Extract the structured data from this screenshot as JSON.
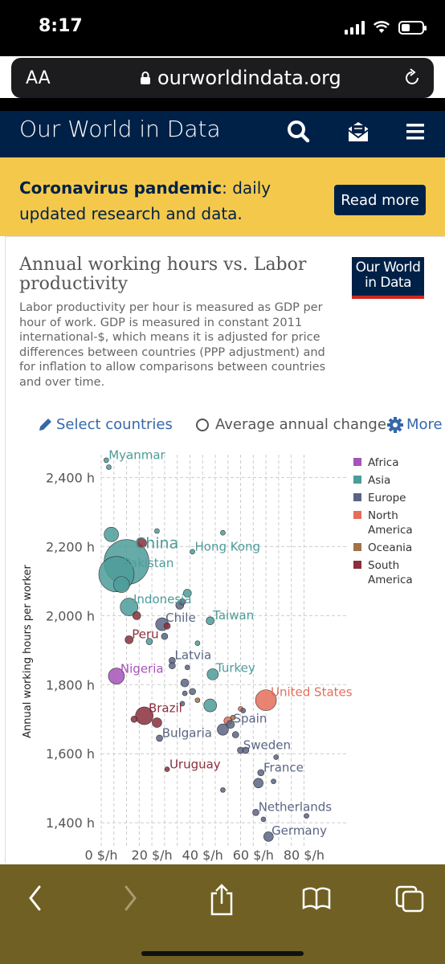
{
  "status_bar": {
    "time": "8:17"
  },
  "browser": {
    "text_size": "AA",
    "url": "ourworldindata.org"
  },
  "site": {
    "name": "Our World in Data"
  },
  "banner": {
    "bold": "Coronavirus pandemic",
    "text": ": daily updated research and data.",
    "button": "Read more"
  },
  "chart_header": {
    "title": "Annual working hours vs. Labor productivity",
    "subtitle": "Labor productivity per hour is measured as GDP per hour of work. GDP is measured in constant 2011 international-$, which means it is adjusted for price differences between countries (PPP adjustment) and for inflation to allow comparisons between countries and over time.",
    "badge_line1": "Our World",
    "badge_line2": "in Data"
  },
  "controls": {
    "select": "Select countries",
    "average": "Average annual change",
    "more": "More"
  },
  "colors": {
    "Africa": "#a652ba",
    "Asia": "#4c9c9a",
    "Europe": "#5a6584",
    "North America": "#e56e5a",
    "Oceania": "#a2724a",
    "South America": "#8a2f3c",
    "navy": "#002147",
    "banner": "#f4c94b"
  },
  "chart_data": {
    "type": "scatter",
    "xlabel": "",
    "ylabel": "Annual working hours per worker",
    "xlim": [
      0,
      90
    ],
    "ylim": [
      1340,
      2480
    ],
    "x_ticks": [
      0,
      20,
      40,
      60,
      80
    ],
    "x_tick_labels": [
      "0 $/h",
      "20 $/h",
      "40 $/h",
      "60 $/h",
      "80 $/h"
    ],
    "y_ticks": [
      1400,
      1600,
      1800,
      2000,
      2200,
      2400
    ],
    "y_tick_labels": [
      "1,400 h",
      "1,600 h",
      "1,800 h",
      "2,000 h",
      "2,200 h",
      "2,400 h"
    ],
    "grid": true,
    "legend": [
      "Africa",
      "Asia",
      "Europe",
      "North America",
      "Oceania",
      "South America"
    ],
    "legend_placement": "right",
    "points": [
      {
        "x": 2,
        "y": 2450,
        "r": 3,
        "region": "Asia",
        "label": "Myanmar"
      },
      {
        "x": 3,
        "y": 2430,
        "r": 3,
        "region": "Asia",
        "label": ""
      },
      {
        "x": 10,
        "y": 2155,
        "r": 28,
        "region": "Asia",
        "label": "China"
      },
      {
        "x": 6,
        "y": 2120,
        "r": 22,
        "region": "Asia",
        "label": "Pakistan"
      },
      {
        "x": 4,
        "y": 2235,
        "r": 9,
        "region": "Asia",
        "label": ""
      },
      {
        "x": 8,
        "y": 2090,
        "r": 10,
        "region": "Asia",
        "label": ""
      },
      {
        "x": 16,
        "y": 2210,
        "r": 6,
        "region": "South America",
        "label": ""
      },
      {
        "x": 11,
        "y": 2025,
        "r": 11,
        "region": "Asia",
        "label": "Indonesia"
      },
      {
        "x": 14,
        "y": 2000,
        "r": 5,
        "region": "South America",
        "label": ""
      },
      {
        "x": 34,
        "y": 2065,
        "r": 5,
        "region": "Asia",
        "label": ""
      },
      {
        "x": 31,
        "y": 2030,
        "r": 5,
        "region": "Europe",
        "label": ""
      },
      {
        "x": 32,
        "y": 2040,
        "r": 4,
        "region": "Europe",
        "label": ""
      },
      {
        "x": 48,
        "y": 2240,
        "r": 3,
        "region": "Asia",
        "label": ""
      },
      {
        "x": 36,
        "y": 2185,
        "r": 3,
        "region": "Asia",
        "label": "Hong Kong"
      },
      {
        "x": 22,
        "y": 2245,
        "r": 3,
        "region": "Asia",
        "label": ""
      },
      {
        "x": 24,
        "y": 1975,
        "r": 8,
        "region": "Europe",
        "label": "Chile"
      },
      {
        "x": 26,
        "y": 1970,
        "r": 4,
        "region": "South America",
        "label": ""
      },
      {
        "x": 43,
        "y": 1985,
        "r": 5,
        "region": "Asia",
        "label": "Taiwan"
      },
      {
        "x": 11,
        "y": 1930,
        "r": 5,
        "region": "South America",
        "label": "Peru"
      },
      {
        "x": 19,
        "y": 1925,
        "r": 4,
        "region": "Asia",
        "label": ""
      },
      {
        "x": 25,
        "y": 1940,
        "r": 4,
        "region": "Europe",
        "label": ""
      },
      {
        "x": 38,
        "y": 1920,
        "r": 3,
        "region": "Asia",
        "label": ""
      },
      {
        "x": 28,
        "y": 1870,
        "r": 4,
        "region": "Europe",
        "label": "Latvia"
      },
      {
        "x": 28,
        "y": 1855,
        "r": 4,
        "region": "Europe",
        "label": ""
      },
      {
        "x": 34,
        "y": 1850,
        "r": 3,
        "region": "Europe",
        "label": ""
      },
      {
        "x": 6,
        "y": 1825,
        "r": 10,
        "region": "Africa",
        "label": "Nigeria"
      },
      {
        "x": 44,
        "y": 1830,
        "r": 7,
        "region": "Asia",
        "label": "Turkey"
      },
      {
        "x": 33,
        "y": 1805,
        "r": 5,
        "region": "Europe",
        "label": ""
      },
      {
        "x": 65,
        "y": 1755,
        "r": 13,
        "region": "North America",
        "label": "United States"
      },
      {
        "x": 33,
        "y": 1775,
        "r": 3,
        "region": "Europe",
        "label": ""
      },
      {
        "x": 36,
        "y": 1780,
        "r": 4,
        "region": "Europe",
        "label": ""
      },
      {
        "x": 38,
        "y": 1755,
        "r": 3,
        "region": "Oceania",
        "label": ""
      },
      {
        "x": 43,
        "y": 1740,
        "r": 8,
        "region": "Asia",
        "label": ""
      },
      {
        "x": 32,
        "y": 1745,
        "r": 3,
        "region": "Europe",
        "label": ""
      },
      {
        "x": 17,
        "y": 1710,
        "r": 11,
        "region": "South America",
        "label": "Brazil"
      },
      {
        "x": 13,
        "y": 1700,
        "r": 4,
        "region": "South America",
        "label": ""
      },
      {
        "x": 22,
        "y": 1690,
        "r": 6,
        "region": "South America",
        "label": ""
      },
      {
        "x": 23,
        "y": 1645,
        "r": 4,
        "region": "Europe",
        "label": "Bulgaria"
      },
      {
        "x": 48,
        "y": 1670,
        "r": 7,
        "region": "Europe",
        "label": ""
      },
      {
        "x": 50,
        "y": 1695,
        "r": 5,
        "region": "North America",
        "label": ""
      },
      {
        "x": 51,
        "y": 1685,
        "r": 5,
        "region": "Europe",
        "label": "Spain"
      },
      {
        "x": 52,
        "y": 1705,
        "r": 3,
        "region": "Oceania",
        "label": ""
      },
      {
        "x": 55,
        "y": 1730,
        "r": 3,
        "region": "North America",
        "label": ""
      },
      {
        "x": 56,
        "y": 1725,
        "r": 3,
        "region": "Europe",
        "label": ""
      },
      {
        "x": 53,
        "y": 1655,
        "r": 4,
        "region": "Europe",
        "label": ""
      },
      {
        "x": 55,
        "y": 1610,
        "r": 4,
        "region": "Europe",
        "label": "Sweden"
      },
      {
        "x": 57,
        "y": 1610,
        "r": 4,
        "region": "Europe",
        "label": ""
      },
      {
        "x": 69,
        "y": 1590,
        "r": 3,
        "region": "Europe",
        "label": ""
      },
      {
        "x": 26,
        "y": 1555,
        "r": 3,
        "region": "South America",
        "label": "Uruguay"
      },
      {
        "x": 63,
        "y": 1545,
        "r": 4,
        "region": "Europe",
        "label": "France"
      },
      {
        "x": 62,
        "y": 1515,
        "r": 6,
        "region": "Europe",
        "label": ""
      },
      {
        "x": 68,
        "y": 1520,
        "r": 3,
        "region": "Europe",
        "label": ""
      },
      {
        "x": 48,
        "y": 1495,
        "r": 3,
        "region": "Europe",
        "label": ""
      },
      {
        "x": 61,
        "y": 1430,
        "r": 4,
        "region": "Europe",
        "label": "Netherlands"
      },
      {
        "x": 64,
        "y": 1410,
        "r": 3,
        "region": "Europe",
        "label": ""
      },
      {
        "x": 81,
        "y": 1420,
        "r": 3,
        "region": "Europe",
        "label": ""
      },
      {
        "x": 66,
        "y": 1360,
        "r": 6,
        "region": "Europe",
        "label": "Germany"
      }
    ]
  }
}
